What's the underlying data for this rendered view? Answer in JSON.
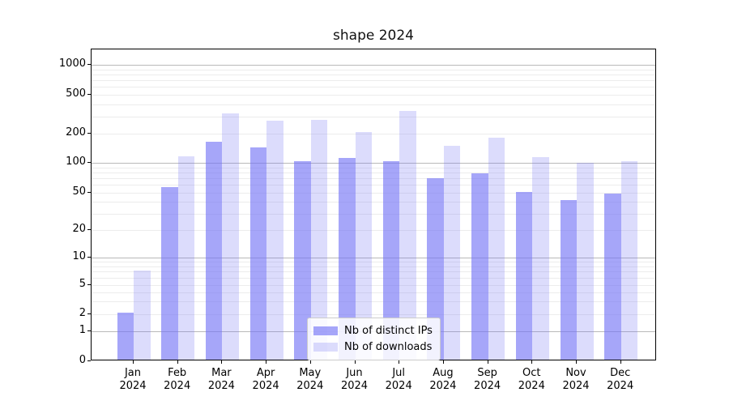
{
  "figure": {
    "title": "shape 2024",
    "background": "#ffffff"
  },
  "chart_data": {
    "type": "bar",
    "title": "shape 2024",
    "categories": [
      "Jan 2024",
      "Feb 2024",
      "Mar 2024",
      "Apr 2024",
      "May 2024",
      "Jun 2024",
      "Jul 2024",
      "Aug 2024",
      "Sep 2024",
      "Oct 2024",
      "Nov 2024",
      "Dec 2024"
    ],
    "series": [
      {
        "name": "Nb of distinct IPs",
        "color": "rgba(115,115,245,0.64)",
        "values": [
          2,
          55,
          160,
          140,
          100,
          108,
          100,
          67,
          75,
          49,
          40,
          47
        ]
      },
      {
        "name": "Nb of downloads",
        "color": "rgba(115,115,245,0.25)",
        "values": [
          7,
          113,
          310,
          260,
          265,
          200,
          330,
          145,
          175,
          111,
          96,
          100
        ]
      }
    ],
    "xlabel": "",
    "ylabel": "",
    "y_axis": {
      "scale": "symlog",
      "tick_labels": [
        0,
        1,
        2,
        5,
        10,
        20,
        50,
        100,
        200,
        500,
        1000
      ],
      "major_gridlines": [
        1,
        10,
        100,
        1000
      ],
      "minor_gridlines": [
        2,
        3,
        4,
        5,
        6,
        7,
        8,
        9,
        20,
        30,
        40,
        50,
        60,
        70,
        80,
        90,
        200,
        300,
        400,
        500,
        600,
        700,
        800,
        900
      ],
      "ylim_top": 1400
    },
    "grid": true,
    "legend": {
      "position": "lower center",
      "entries": [
        "Nb of distinct IPs",
        "Nb of downloads"
      ]
    },
    "colors": {
      "bar_dark": "rgba(115,115,245,0.64)",
      "bar_light": "rgba(115,115,245,0.25)",
      "major_grid": "#b9b9b9",
      "minor_grid": "#ececec",
      "axis": "#000000",
      "legend_border": "#cccccc"
    }
  }
}
